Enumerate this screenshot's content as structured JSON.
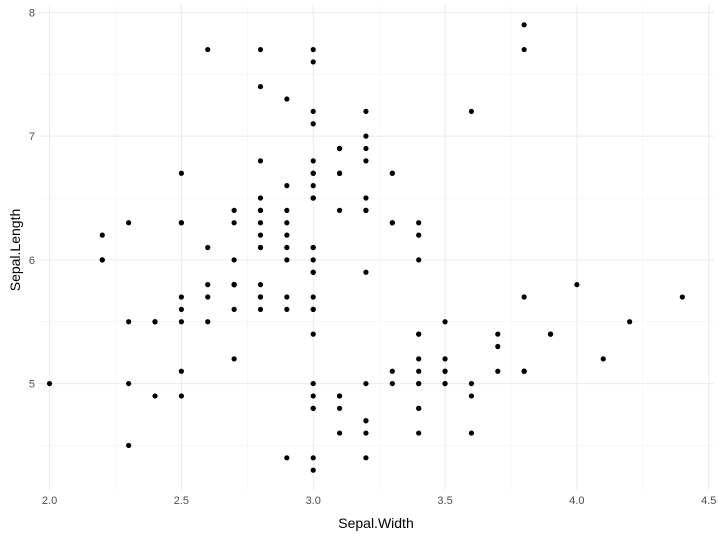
{
  "chart_data": {
    "type": "scatter",
    "title": "",
    "xlabel": "Sepal.Width",
    "ylabel": "Sepal.Length",
    "xlim": [
      1.96,
      4.52
    ],
    "ylim": [
      4.14,
      8.06
    ],
    "x_ticks": [
      2.0,
      2.5,
      3.0,
      3.5,
      4.0,
      4.5
    ],
    "x_tick_labels": [
      "2.0",
      "2.5",
      "3.0",
      "3.5",
      "4.0",
      "4.5"
    ],
    "y_ticks": [
      5,
      6,
      7,
      8
    ],
    "y_tick_labels": [
      "5",
      "6",
      "7",
      "8"
    ],
    "grid": true,
    "legend": "none",
    "colors": {
      "point": "#000000",
      "grid_major": "#ebebeb",
      "grid_minor": "#f4f4f4",
      "background": "#ffffff"
    },
    "points": [
      [
        3.5,
        5.1
      ],
      [
        3.0,
        4.9
      ],
      [
        3.2,
        4.7
      ],
      [
        3.1,
        4.6
      ],
      [
        3.6,
        5.0
      ],
      [
        3.9,
        5.4
      ],
      [
        3.4,
        4.6
      ],
      [
        3.4,
        5.0
      ],
      [
        2.9,
        4.4
      ],
      [
        3.1,
        4.9
      ],
      [
        3.7,
        5.4
      ],
      [
        3.4,
        4.8
      ],
      [
        3.0,
        4.8
      ],
      [
        3.0,
        4.3
      ],
      [
        4.0,
        5.8
      ],
      [
        4.4,
        5.7
      ],
      [
        3.9,
        5.4
      ],
      [
        3.5,
        5.1
      ],
      [
        3.8,
        5.7
      ],
      [
        3.8,
        5.1
      ],
      [
        3.4,
        5.4
      ],
      [
        3.7,
        5.1
      ],
      [
        3.6,
        4.6
      ],
      [
        3.3,
        5.1
      ],
      [
        3.4,
        4.8
      ],
      [
        3.0,
        5.0
      ],
      [
        3.4,
        5.0
      ],
      [
        3.5,
        5.2
      ],
      [
        3.4,
        5.2
      ],
      [
        3.2,
        4.7
      ],
      [
        3.1,
        4.8
      ],
      [
        3.4,
        5.4
      ],
      [
        4.1,
        5.2
      ],
      [
        4.2,
        5.5
      ],
      [
        3.1,
        4.9
      ],
      [
        3.2,
        5.0
      ],
      [
        3.5,
        5.5
      ],
      [
        3.6,
        4.9
      ],
      [
        3.0,
        4.4
      ],
      [
        3.4,
        5.1
      ],
      [
        3.5,
        5.0
      ],
      [
        2.3,
        4.5
      ],
      [
        3.2,
        4.4
      ],
      [
        3.5,
        5.0
      ],
      [
        3.8,
        5.1
      ],
      [
        3.0,
        4.8
      ],
      [
        3.8,
        5.1
      ],
      [
        3.2,
        4.6
      ],
      [
        3.7,
        5.3
      ],
      [
        3.3,
        5.0
      ],
      [
        3.2,
        7.0
      ],
      [
        3.2,
        6.4
      ],
      [
        3.1,
        6.9
      ],
      [
        2.3,
        5.5
      ],
      [
        2.8,
        6.5
      ],
      [
        2.8,
        5.7
      ],
      [
        3.3,
        6.3
      ],
      [
        2.4,
        4.9
      ],
      [
        2.9,
        6.6
      ],
      [
        2.7,
        5.2
      ],
      [
        2.0,
        5.0
      ],
      [
        3.0,
        5.9
      ],
      [
        2.2,
        6.0
      ],
      [
        2.9,
        6.1
      ],
      [
        2.9,
        5.6
      ],
      [
        3.1,
        6.7
      ],
      [
        3.0,
        5.6
      ],
      [
        2.7,
        5.8
      ],
      [
        2.2,
        6.2
      ],
      [
        2.5,
        5.6
      ],
      [
        3.2,
        5.9
      ],
      [
        2.8,
        6.1
      ],
      [
        2.5,
        6.3
      ],
      [
        2.8,
        6.1
      ],
      [
        2.9,
        6.4
      ],
      [
        3.0,
        6.6
      ],
      [
        2.8,
        6.8
      ],
      [
        3.0,
        6.7
      ],
      [
        2.9,
        6.0
      ],
      [
        2.6,
        5.7
      ],
      [
        2.4,
        5.5
      ],
      [
        2.4,
        5.5
      ],
      [
        2.7,
        5.8
      ],
      [
        2.7,
        6.0
      ],
      [
        3.0,
        5.4
      ],
      [
        3.4,
        6.0
      ],
      [
        3.1,
        6.7
      ],
      [
        2.3,
        6.3
      ],
      [
        3.0,
        5.6
      ],
      [
        2.5,
        5.5
      ],
      [
        2.6,
        5.5
      ],
      [
        3.0,
        6.1
      ],
      [
        2.6,
        5.8
      ],
      [
        2.3,
        5.0
      ],
      [
        2.7,
        5.6
      ],
      [
        3.0,
        5.7
      ],
      [
        2.9,
        5.7
      ],
      [
        2.9,
        6.2
      ],
      [
        2.5,
        5.1
      ],
      [
        2.8,
        5.7
      ],
      [
        3.3,
        6.3
      ],
      [
        2.7,
        5.8
      ],
      [
        3.0,
        7.1
      ],
      [
        2.9,
        6.3
      ],
      [
        3.0,
        6.5
      ],
      [
        3.0,
        7.6
      ],
      [
        2.5,
        4.9
      ],
      [
        2.9,
        7.3
      ],
      [
        2.5,
        6.7
      ],
      [
        3.6,
        7.2
      ],
      [
        3.2,
        6.5
      ],
      [
        2.7,
        6.4
      ],
      [
        3.0,
        6.8
      ],
      [
        2.5,
        5.7
      ],
      [
        2.8,
        5.8
      ],
      [
        3.2,
        6.4
      ],
      [
        3.0,
        6.5
      ],
      [
        3.8,
        7.7
      ],
      [
        2.6,
        7.7
      ],
      [
        2.2,
        6.0
      ],
      [
        3.2,
        6.9
      ],
      [
        2.8,
        5.6
      ],
      [
        2.8,
        7.7
      ],
      [
        2.7,
        6.3
      ],
      [
        3.3,
        6.7
      ],
      [
        3.2,
        7.2
      ],
      [
        2.8,
        6.2
      ],
      [
        3.0,
        6.1
      ],
      [
        2.8,
        6.4
      ],
      [
        3.0,
        7.2
      ],
      [
        2.8,
        7.4
      ],
      [
        3.8,
        7.9
      ],
      [
        2.8,
        6.4
      ],
      [
        2.8,
        6.3
      ],
      [
        2.6,
        6.1
      ],
      [
        3.0,
        7.7
      ],
      [
        3.4,
        6.3
      ],
      [
        3.1,
        6.4
      ],
      [
        3.0,
        6.0
      ],
      [
        3.1,
        6.9
      ],
      [
        3.1,
        6.7
      ],
      [
        3.1,
        6.9
      ],
      [
        2.7,
        5.8
      ],
      [
        3.2,
        6.8
      ],
      [
        3.3,
        6.7
      ],
      [
        3.0,
        6.7
      ],
      [
        2.5,
        6.3
      ],
      [
        3.0,
        6.5
      ],
      [
        3.4,
        6.2
      ],
      [
        3.0,
        5.9
      ]
    ]
  }
}
